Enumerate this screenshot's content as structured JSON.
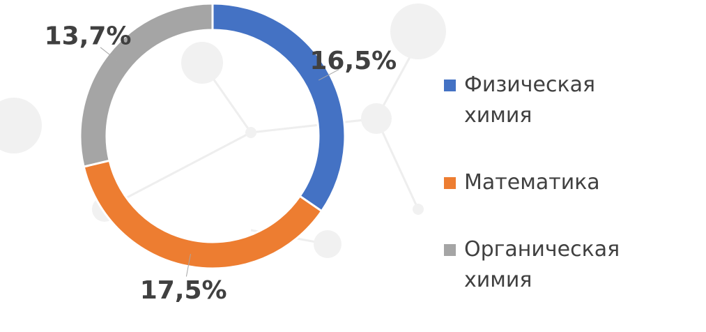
{
  "chart_data": {
    "type": "donut",
    "categories": [
      "Физическая химия",
      "Математика",
      "Органическая химия"
    ],
    "values": [
      16.5,
      17.5,
      13.7
    ],
    "value_labels": [
      "16,5%",
      "17,5%",
      "13,7%"
    ],
    "colors": [
      "#4472c4",
      "#ed7d31",
      "#a5a5a5"
    ],
    "legend": "right"
  }
}
